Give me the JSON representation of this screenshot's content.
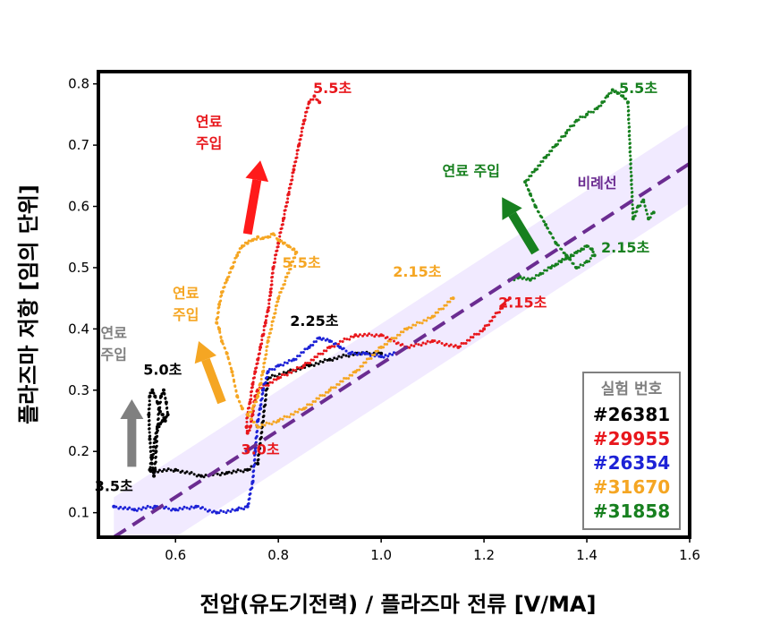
{
  "chart_data": {
    "type": "scatter",
    "xlabel": "전압(유도기전력) / 플라즈마 전류 [V/MA]",
    "ylabel": "플라즈마 저항 [임의 단위]",
    "xlim": [
      0.45,
      1.6
    ],
    "ylim": [
      0.06,
      0.82
    ],
    "xticks": [
      "0.6",
      "0.8",
      "1.0",
      "1.2",
      "1.4",
      "1.6"
    ],
    "yticks": [
      "0.1",
      "0.2",
      "0.3",
      "0.4",
      "0.5",
      "0.6",
      "0.7",
      "0.8"
    ],
    "legend": {
      "title": "실험 번호",
      "placement": "bottom-right",
      "entries": [
        "#26381",
        "#29955",
        "#26354",
        "#31670",
        "#31858"
      ]
    },
    "proportional_line": {
      "label": "비례선",
      "x": [
        0.48,
        1.6
      ],
      "y": [
        0.06,
        0.67
      ],
      "band_halfwidth": 0.065,
      "color": "#6b2c91",
      "band_color": "#efe6ff"
    },
    "series": [
      {
        "name": "#26381",
        "color": "#000000",
        "x": [
          0.58,
          0.575,
          0.57,
          0.565,
          0.56,
          0.555,
          0.55,
          0.548,
          0.55,
          0.553,
          0.556,
          0.558,
          0.56,
          0.562,
          0.565,
          0.568,
          0.572,
          0.577,
          0.582,
          0.585,
          0.58,
          0.575,
          0.57,
          0.565,
          0.56,
          0.555,
          0.55,
          0.552,
          0.6,
          0.65,
          0.7,
          0.74,
          0.76,
          0.78,
          0.82,
          0.86,
          0.9,
          0.95,
          1.0
        ],
        "y": [
          0.25,
          0.26,
          0.265,
          0.28,
          0.29,
          0.3,
          0.29,
          0.26,
          0.22,
          0.19,
          0.17,
          0.16,
          0.17,
          0.2,
          0.24,
          0.27,
          0.29,
          0.3,
          0.28,
          0.26,
          0.255,
          0.25,
          0.245,
          0.24,
          0.22,
          0.19,
          0.17,
          0.168,
          0.17,
          0.16,
          0.165,
          0.17,
          0.18,
          0.32,
          0.33,
          0.34,
          0.35,
          0.36,
          0.36
        ]
      },
      {
        "name": "#29955",
        "color": "#e8171c",
        "x": [
          0.88,
          0.87,
          0.86,
          0.85,
          0.84,
          0.83,
          0.82,
          0.81,
          0.8,
          0.79,
          0.785,
          0.78,
          0.775,
          0.77,
          0.765,
          0.76,
          0.755,
          0.75,
          0.745,
          0.74,
          0.738,
          0.74,
          0.745,
          0.75,
          0.755,
          0.76,
          0.8,
          0.85,
          0.9,
          0.95,
          1.0,
          1.05,
          1.1,
          1.15,
          1.2,
          1.25
        ],
        "y": [
          0.77,
          0.78,
          0.77,
          0.74,
          0.7,
          0.66,
          0.62,
          0.58,
          0.54,
          0.5,
          0.46,
          0.43,
          0.41,
          0.39,
          0.37,
          0.35,
          0.33,
          0.31,
          0.28,
          0.26,
          0.24,
          0.23,
          0.24,
          0.26,
          0.29,
          0.3,
          0.32,
          0.34,
          0.37,
          0.39,
          0.39,
          0.37,
          0.38,
          0.37,
          0.4,
          0.45
        ]
      },
      {
        "name": "#26354",
        "color": "#1d22d6",
        "x": [
          0.48,
          0.52,
          0.56,
          0.6,
          0.64,
          0.68,
          0.72,
          0.74,
          0.75,
          0.755,
          0.76,
          0.765,
          0.77,
          0.78,
          0.8,
          0.83,
          0.86,
          0.88,
          0.9,
          0.92,
          0.94,
          0.97,
          1.0,
          1.03
        ],
        "y": [
          0.11,
          0.105,
          0.11,
          0.105,
          0.11,
          0.1,
          0.105,
          0.11,
          0.15,
          0.2,
          0.25,
          0.27,
          0.3,
          0.33,
          0.34,
          0.35,
          0.37,
          0.385,
          0.38,
          0.37,
          0.36,
          0.36,
          0.355,
          0.36
        ]
      },
      {
        "name": "#31670",
        "color": "#f5a623",
        "x": [
          0.73,
          0.72,
          0.71,
          0.7,
          0.69,
          0.685,
          0.68,
          0.685,
          0.69,
          0.7,
          0.71,
          0.72,
          0.73,
          0.74,
          0.75,
          0.76,
          0.77,
          0.78,
          0.79,
          0.8,
          0.81,
          0.82,
          0.83,
          0.835,
          0.8,
          0.78,
          0.77,
          0.765,
          0.76,
          0.75,
          0.74,
          0.76,
          0.8,
          0.85,
          0.9,
          0.95,
          1.0,
          1.05,
          1.1,
          1.14
        ],
        "y": [
          0.27,
          0.29,
          0.33,
          0.36,
          0.38,
          0.4,
          0.41,
          0.44,
          0.46,
          0.48,
          0.5,
          0.52,
          0.535,
          0.54,
          0.545,
          0.55,
          0.548,
          0.55,
          0.555,
          0.545,
          0.54,
          0.535,
          0.53,
          0.525,
          0.45,
          0.38,
          0.33,
          0.31,
          0.29,
          0.27,
          0.26,
          0.24,
          0.25,
          0.27,
          0.3,
          0.33,
          0.37,
          0.4,
          0.42,
          0.45
        ]
      },
      {
        "name": "#31858",
        "color": "#17801f",
        "x": [
          1.25,
          1.27,
          1.29,
          1.31,
          1.33,
          1.34,
          1.35,
          1.36,
          1.37,
          1.38,
          1.39,
          1.4,
          1.41,
          1.415,
          1.4,
          1.38,
          1.36,
          1.34,
          1.32,
          1.3,
          1.29,
          1.28,
          1.3,
          1.32,
          1.34,
          1.36,
          1.38,
          1.4,
          1.42,
          1.43,
          1.44,
          1.45,
          1.46,
          1.47,
          1.48,
          1.49,
          1.5,
          1.51,
          1.52,
          1.53
        ],
        "y": [
          0.48,
          0.485,
          0.48,
          0.49,
          0.5,
          0.505,
          0.51,
          0.515,
          0.52,
          0.525,
          0.53,
          0.535,
          0.53,
          0.52,
          0.51,
          0.5,
          0.52,
          0.54,
          0.57,
          0.6,
          0.62,
          0.64,
          0.66,
          0.68,
          0.7,
          0.72,
          0.74,
          0.75,
          0.76,
          0.77,
          0.78,
          0.79,
          0.785,
          0.78,
          0.77,
          0.58,
          0.6,
          0.61,
          0.58,
          0.59
        ]
      }
    ],
    "annotations": [
      {
        "text": "5.5초",
        "x": 0.905,
        "y": 0.785,
        "color": "#e8171c"
      },
      {
        "text": "5.5초",
        "x": 1.5,
        "y": 0.785,
        "color": "#17801f"
      },
      {
        "text": "5.5초",
        "x": 0.845,
        "y": 0.5,
        "color": "#f5a623"
      },
      {
        "text": "연료",
        "x": 0.665,
        "y": 0.73,
        "color": "#e8171c"
      },
      {
        "text": "주입",
        "x": 0.665,
        "y": 0.695,
        "color": "#e8171c"
      },
      {
        "text": "연료 주입",
        "x": 1.175,
        "y": 0.65,
        "color": "#17801f"
      },
      {
        "text": "비례선",
        "x": 1.42,
        "y": 0.63,
        "color": "#6b2c91"
      },
      {
        "text": "2.15초",
        "x": 1.475,
        "y": 0.525,
        "color": "#17801f"
      },
      {
        "text": "2.15초",
        "x": 1.07,
        "y": 0.485,
        "color": "#f5a623"
      },
      {
        "text": "2.15초",
        "x": 1.275,
        "y": 0.435,
        "color": "#e8171c"
      },
      {
        "text": "연료",
        "x": 0.62,
        "y": 0.45,
        "color": "#f5a623"
      },
      {
        "text": "주입",
        "x": 0.62,
        "y": 0.415,
        "color": "#f5a623"
      },
      {
        "text": "2.25초",
        "x": 0.87,
        "y": 0.405,
        "color": "#000000"
      },
      {
        "text": "연료",
        "x": 0.48,
        "y": 0.385,
        "color": "#808080"
      },
      {
        "text": "주입",
        "x": 0.48,
        "y": 0.35,
        "color": "#808080"
      },
      {
        "text": "5.0초",
        "x": 0.575,
        "y": 0.325,
        "color": "#000000"
      },
      {
        "text": "3.0초",
        "x": 0.765,
        "y": 0.195,
        "color": "#e8171c"
      },
      {
        "text": "3.5초",
        "x": 0.48,
        "y": 0.135,
        "color": "#000000"
      }
    ],
    "arrows": [
      {
        "color": "#808080",
        "x1": 0.515,
        "y1": 0.175,
        "x2": 0.515,
        "y2": 0.285
      },
      {
        "color": "#ff1a1a",
        "x1": 0.74,
        "y1": 0.555,
        "x2": 0.765,
        "y2": 0.675
      },
      {
        "color": "#f5a623",
        "x1": 0.69,
        "y1": 0.28,
        "x2": 0.645,
        "y2": 0.38
      },
      {
        "color": "#17801f",
        "x1": 1.3,
        "y1": 0.525,
        "x2": 1.235,
        "y2": 0.615
      }
    ]
  }
}
